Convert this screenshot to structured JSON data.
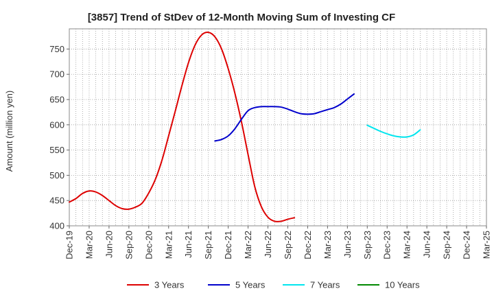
{
  "chart_data": {
    "type": "line",
    "title": "[3857]  Trend of StDev of 12-Month Moving Sum of Investing CF",
    "ylabel": "Amount (million yen)",
    "xlabel": "",
    "x_tick_labels": [
      "Dec-19",
      "Mar-20",
      "Jun-20",
      "Sep-20",
      "Dec-20",
      "Mar-21",
      "Jun-21",
      "Sep-21",
      "Dec-21",
      "Mar-22",
      "Jun-22",
      "Sep-22",
      "Dec-22",
      "Mar-23",
      "Jun-23",
      "Sep-23",
      "Dec-23",
      "Mar-24",
      "Jun-24",
      "Sep-24",
      "Dec-24",
      "Mar-25"
    ],
    "y_ticks": [
      400,
      450,
      500,
      550,
      600,
      650,
      700,
      750
    ],
    "ylim": [
      400,
      790
    ],
    "grid": true,
    "legend_position": "bottom",
    "series": [
      {
        "name": "3 Years",
        "color": "#dd0000",
        "start_index": 0,
        "values": [
          447,
          454,
          464,
          469,
          467,
          460,
          450,
          440,
          434,
          433,
          437,
          445,
          465,
          492,
          530,
          578,
          627,
          677,
          723,
          758,
          778,
          783,
          774,
          750,
          711,
          663,
          606,
          541,
          478,
          438,
          417,
          409,
          409,
          413,
          416
        ]
      },
      {
        "name": "5 Years",
        "color": "#0000cc",
        "start_index": 22,
        "values": [
          568,
          571,
          578,
          592,
          611,
          628,
          634,
          636,
          636,
          636,
          635,
          631,
          626,
          622,
          621,
          622,
          626,
          630,
          634,
          641,
          651,
          661
        ]
      },
      {
        "name": "7 Years",
        "color": "#00e5ee",
        "start_index": 45,
        "values": [
          599,
          593,
          587,
          582,
          578,
          576,
          576,
          580,
          590
        ]
      },
      {
        "name": "10 Years",
        "color": "#008800",
        "start_index": 0,
        "values": []
      }
    ]
  }
}
